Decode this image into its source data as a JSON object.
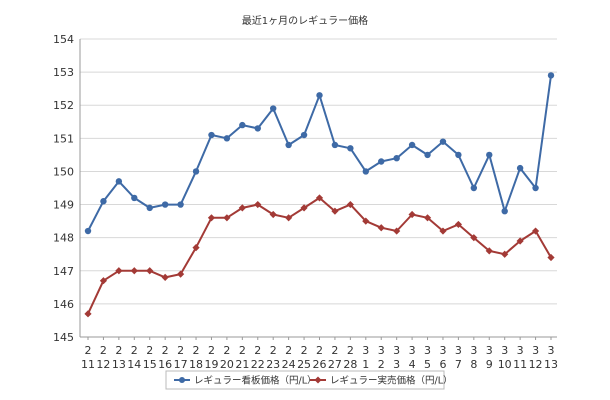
{
  "chart_data": {
    "type": "line",
    "title": "最近1ヶ月のレギュラー価格",
    "xlabel": "",
    "ylabel": "",
    "ylim": [
      145,
      154
    ],
    "yticks": [
      145,
      146,
      147,
      148,
      149,
      150,
      151,
      152,
      153,
      154
    ],
    "grid": true,
    "legend_position": "bottom",
    "categories": [
      {
        "m": "2",
        "d": "11"
      },
      {
        "m": "2",
        "d": "12"
      },
      {
        "m": "2",
        "d": "13"
      },
      {
        "m": "2",
        "d": "14"
      },
      {
        "m": "2",
        "d": "15"
      },
      {
        "m": "2",
        "d": "16"
      },
      {
        "m": "2",
        "d": "17"
      },
      {
        "m": "2",
        "d": "18"
      },
      {
        "m": "2",
        "d": "19"
      },
      {
        "m": "2",
        "d": "20"
      },
      {
        "m": "2",
        "d": "21"
      },
      {
        "m": "2",
        "d": "22"
      },
      {
        "m": "2",
        "d": "23"
      },
      {
        "m": "2",
        "d": "24"
      },
      {
        "m": "2",
        "d": "25"
      },
      {
        "m": "2",
        "d": "26"
      },
      {
        "m": "2",
        "d": "27"
      },
      {
        "m": "2",
        "d": "28"
      },
      {
        "m": "3",
        "d": "1"
      },
      {
        "m": "3",
        "d": "2"
      },
      {
        "m": "3",
        "d": "3"
      },
      {
        "m": "3",
        "d": "4"
      },
      {
        "m": "3",
        "d": "5"
      },
      {
        "m": "3",
        "d": "6"
      },
      {
        "m": "3",
        "d": "7"
      },
      {
        "m": "3",
        "d": "8"
      },
      {
        "m": "3",
        "d": "9"
      },
      {
        "m": "3",
        "d": "10"
      },
      {
        "m": "3",
        "d": "11"
      },
      {
        "m": "3",
        "d": "12"
      },
      {
        "m": "3",
        "d": "13"
      }
    ],
    "series": [
      {
        "name": "レギュラー看板価格（円/L）",
        "color": "#3E6AA6",
        "marker": "circle",
        "values": [
          148.2,
          149.1,
          149.7,
          149.2,
          148.9,
          149.0,
          149.0,
          150.0,
          151.1,
          151.0,
          151.4,
          151.3,
          151.9,
          150.8,
          151.1,
          152.3,
          150.8,
          150.7,
          150.0,
          150.3,
          150.4,
          150.8,
          150.5,
          150.9,
          150.5,
          149.5,
          150.5,
          148.8,
          150.1,
          149.5,
          152.9
        ]
      },
      {
        "name": "レギュラー実売価格（円/L）",
        "color": "#A33A36",
        "marker": "diamond",
        "values": [
          145.7,
          146.7,
          147.0,
          147.0,
          147.0,
          146.8,
          146.9,
          147.7,
          148.6,
          148.6,
          148.9,
          149.0,
          148.7,
          148.6,
          148.9,
          149.2,
          148.8,
          149.0,
          148.5,
          148.3,
          148.2,
          148.7,
          148.6,
          148.2,
          148.4,
          148.0,
          147.6,
          147.5,
          147.9,
          148.2,
          147.4
        ]
      }
    ]
  }
}
